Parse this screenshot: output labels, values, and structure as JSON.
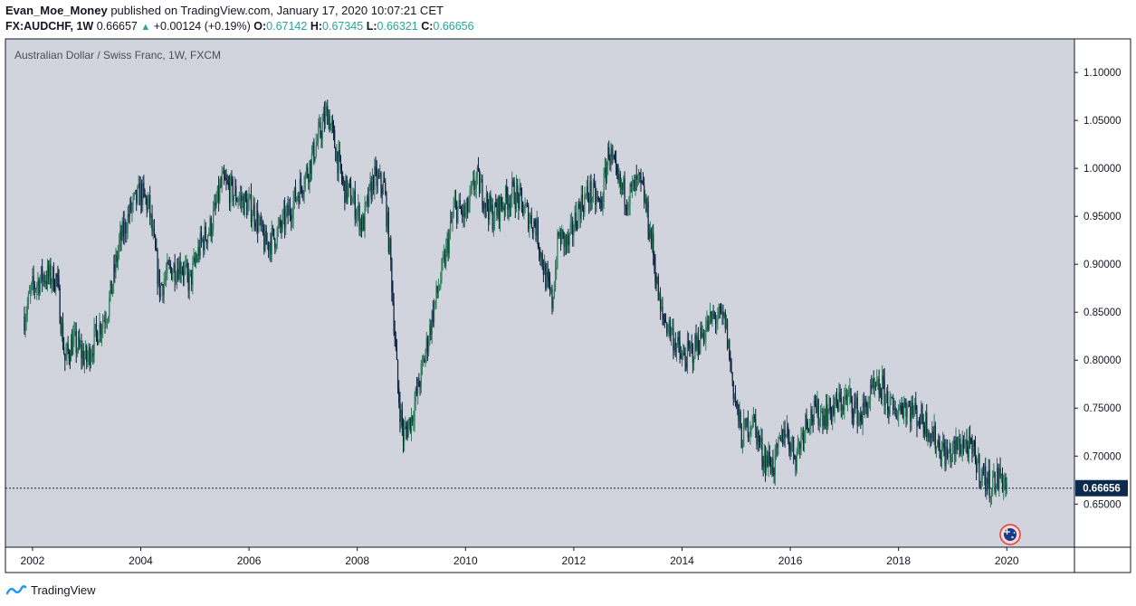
{
  "header": {
    "username": "Evan_Moe_Money",
    "published_text": " published on TradingView.com, January 17, 2020 10:07:21 CET",
    "symbol": "FX:AUDCHF, 1W",
    "last": "0.66657",
    "change": "+0.00124 (+0.19%)",
    "open_label": "O:",
    "open": "0.67142",
    "high_label": "H:",
    "high": "0.67345",
    "low_label": "L:",
    "low": "0.66321",
    "close_label": "C:",
    "close": "0.66656"
  },
  "chart_data": {
    "type": "candlestick",
    "title": "Australian Dollar / Swiss Franc, 1W, FXCM",
    "x_ticks": [
      "2002",
      "2004",
      "2006",
      "2008",
      "2010",
      "2012",
      "2014",
      "2016",
      "2018",
      "2020"
    ],
    "y_ticks": [
      "1.10000",
      "1.05000",
      "1.00000",
      "0.95000",
      "0.90000",
      "0.85000",
      "0.80000",
      "0.75000",
      "0.70000",
      "0.65000"
    ],
    "ylim": [
      0.605,
      1.135
    ],
    "xlim": [
      2001.5,
      2021.25
    ],
    "last_price_label": "0.66656",
    "last_price": 0.66656,
    "series": [
      {
        "x": [
          2001.85,
          2002.0,
          2002.2,
          2002.45,
          2002.6,
          2002.75,
          2003.0,
          2003.2,
          2003.4,
          2003.6,
          2003.8,
          2004.0,
          2004.15,
          2004.35,
          2004.55,
          2004.75,
          2004.9,
          2005.1,
          2005.3,
          2005.5,
          2005.7,
          2005.9,
          2006.1,
          2006.3,
          2006.5,
          2006.7,
          2006.9,
          2007.1,
          2007.3,
          2007.45,
          2007.6,
          2007.75,
          2007.9,
          2008.1,
          2008.3,
          2008.5,
          2008.62,
          2008.75,
          2008.85,
          2009.0,
          2009.2,
          2009.4,
          2009.6,
          2009.8,
          2010.0,
          2010.2,
          2010.35,
          2010.5,
          2010.7,
          2010.9,
          2011.1,
          2011.3,
          2011.5,
          2011.6,
          2011.72,
          2011.9,
          2012.1,
          2012.3,
          2012.5,
          2012.65,
          2012.8,
          2013.0,
          2013.2,
          2013.3,
          2013.45,
          2013.6,
          2013.8,
          2014.0,
          2014.2,
          2014.4,
          2014.6,
          2014.8,
          2014.95,
          2015.1,
          2015.3,
          2015.5,
          2015.7,
          2015.9,
          2016.1,
          2016.3,
          2016.5,
          2016.7,
          2016.9,
          2017.1,
          2017.3,
          2017.5,
          2017.7,
          2017.9,
          2018.1,
          2018.3,
          2018.5,
          2018.7,
          2018.9,
          2019.0,
          2019.2,
          2019.4,
          2019.55,
          2019.7,
          2019.9,
          2020.0
        ],
        "y": [
          0.845,
          0.875,
          0.888,
          0.885,
          0.8,
          0.82,
          0.8,
          0.83,
          0.855,
          0.92,
          0.955,
          0.975,
          0.96,
          0.875,
          0.895,
          0.9,
          0.88,
          0.92,
          0.94,
          0.985,
          0.975,
          0.965,
          0.955,
          0.92,
          0.93,
          0.95,
          0.975,
          1.0,
          1.035,
          1.06,
          1.02,
          0.98,
          0.97,
          0.94,
          0.99,
          0.98,
          0.9,
          0.77,
          0.72,
          0.74,
          0.79,
          0.85,
          0.9,
          0.96,
          0.95,
          0.99,
          0.97,
          0.95,
          0.965,
          0.975,
          0.955,
          0.94,
          0.88,
          0.86,
          0.93,
          0.92,
          0.96,
          0.975,
          0.96,
          1.02,
          0.985,
          0.97,
          0.985,
          0.97,
          0.92,
          0.85,
          0.83,
          0.8,
          0.81,
          0.83,
          0.845,
          0.84,
          0.77,
          0.72,
          0.74,
          0.7,
          0.69,
          0.73,
          0.7,
          0.74,
          0.745,
          0.745,
          0.755,
          0.76,
          0.74,
          0.765,
          0.77,
          0.745,
          0.755,
          0.745,
          0.735,
          0.715,
          0.7,
          0.705,
          0.715,
          0.7,
          0.68,
          0.67,
          0.68,
          0.667
        ]
      }
    ],
    "annotation_icon": "australia-flag-icon"
  },
  "footer": {
    "brand": "TradingView",
    "logo_icon": "tradingview-logo-icon"
  },
  "colors": {
    "plot_bg": "#d1d4dc",
    "page_bg": "#ffffff",
    "candle_up": "#2e7d5b",
    "candle_down": "#0a2240",
    "price_label_bg": "#0c2a4d",
    "accent_up": "#26a69a"
  }
}
